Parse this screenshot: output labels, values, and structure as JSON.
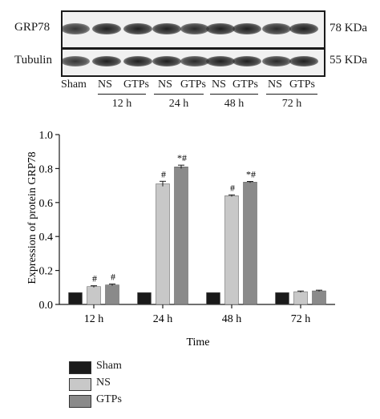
{
  "blot": {
    "rows": [
      {
        "label": "GRP78",
        "size": "78 KDa"
      },
      {
        "label": "Tubulin",
        "size": "55 KDa"
      }
    ],
    "lanes": [
      "Sham",
      "NS",
      "GTPs",
      "NS",
      "GTPs",
      "NS",
      "GTPs",
      "NS",
      "GTPs"
    ],
    "timepoints": [
      "12 h",
      "24 h",
      "48 h",
      "72 h"
    ]
  },
  "chart_data": {
    "type": "bar",
    "categories": [
      "12 h",
      "24 h",
      "48 h",
      "72 h"
    ],
    "series": [
      {
        "name": "Sham",
        "values": [
          0.07,
          0.07,
          0.07,
          0.07
        ],
        "errors": [
          0.0,
          0.0,
          0.0,
          0.0
        ],
        "color": "#1a1a1a"
      },
      {
        "name": "NS",
        "values": [
          0.105,
          0.71,
          0.64,
          0.075
        ],
        "errors": [
          0.005,
          0.015,
          0.005,
          0.004
        ],
        "color": "#c8c8c8"
      },
      {
        "name": "GTPs",
        "values": [
          0.115,
          0.81,
          0.72,
          0.08
        ],
        "errors": [
          0.005,
          0.01,
          0.004,
          0.004
        ],
        "color": "#8a8a8a"
      }
    ],
    "annotations": {
      "NS": [
        "#",
        "#",
        "#",
        ""
      ],
      "GTPs": [
        "#",
        "*#",
        "*#",
        ""
      ]
    },
    "xlabel": "Time",
    "ylabel": "Expression of protein GRP78",
    "ylim": [
      0,
      1.0
    ],
    "yticks": [
      "0.0",
      "0.2",
      "0.4",
      "0.6",
      "0.8",
      "1.0"
    ],
    "grid": false,
    "legend_position": "bottom-left"
  }
}
